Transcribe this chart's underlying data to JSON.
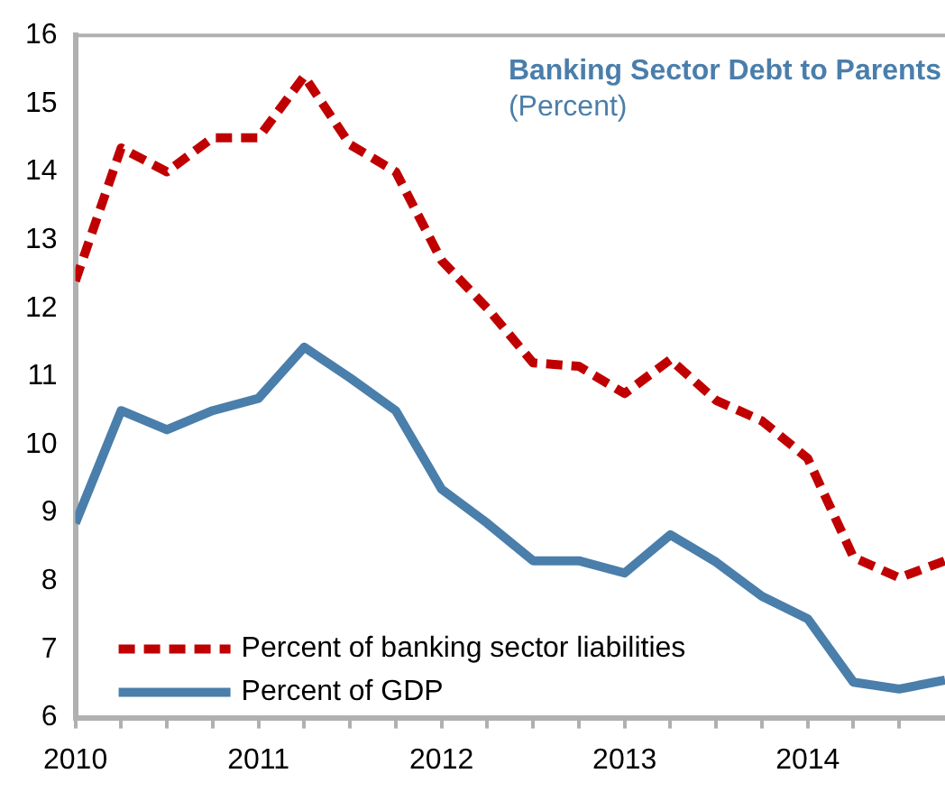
{
  "chart_data": {
    "type": "line",
    "title": "Banking Sector Debt to Parents",
    "subtitle": "(Percent)",
    "x": [
      2010,
      2010.25,
      2010.5,
      2010.75,
      2011,
      2011.25,
      2011.5,
      2011.75,
      2012,
      2012.25,
      2012.5,
      2012.75,
      2013,
      2013.25,
      2013.5,
      2013.75,
      2014,
      2014.25,
      2014.5,
      2014.75
    ],
    "series": [
      {
        "name": "Percent of banking sector liabilities",
        "color": "#c00000",
        "line_style": "dashed",
        "values": [
          12.4,
          14.35,
          14.0,
          14.5,
          14.5,
          15.4,
          14.4,
          14.0,
          12.7,
          12.0,
          11.2,
          11.15,
          10.75,
          11.25,
          10.65,
          10.35,
          9.8,
          8.35,
          8.05,
          8.3
        ]
      },
      {
        "name": "Percent of GDP",
        "color": "#4a7eab",
        "line_style": "solid",
        "values": [
          8.85,
          10.5,
          10.22,
          10.5,
          10.68,
          11.43,
          10.98,
          10.5,
          9.35,
          8.85,
          8.3,
          8.3,
          8.12,
          8.68,
          8.28,
          7.78,
          7.45,
          6.52,
          6.42,
          6.55
        ]
      }
    ],
    "xlim": [
      2010,
      2014.75
    ],
    "xticks": [
      2010,
      {
        "value": 2010.25,
        "label": null
      },
      {
        "value": 2010.5,
        "label": null
      },
      {
        "value": 2010.75,
        "label": null
      },
      2011,
      {
        "value": 2011.25,
        "label": null
      },
      {
        "value": 2011.5,
        "label": null
      },
      {
        "value": 2011.75,
        "label": null
      },
      2012,
      {
        "value": 2012.25,
        "label": null
      },
      {
        "value": 2012.5,
        "label": null
      },
      {
        "value": 2012.75,
        "label": null
      },
      2013,
      {
        "value": 2013.25,
        "label": null
      },
      {
        "value": 2013.5,
        "label": null
      },
      {
        "value": 2013.75,
        "label": null
      },
      2014,
      {
        "value": 2014.25,
        "label": null
      },
      {
        "value": 2014.5,
        "label": null
      }
    ],
    "ylim": [
      6,
      16
    ],
    "yticks": [
      6,
      7,
      8,
      9,
      10,
      11,
      12,
      13,
      14,
      15,
      16
    ],
    "grid": false,
    "legend": "bottom left",
    "marker": "none"
  }
}
